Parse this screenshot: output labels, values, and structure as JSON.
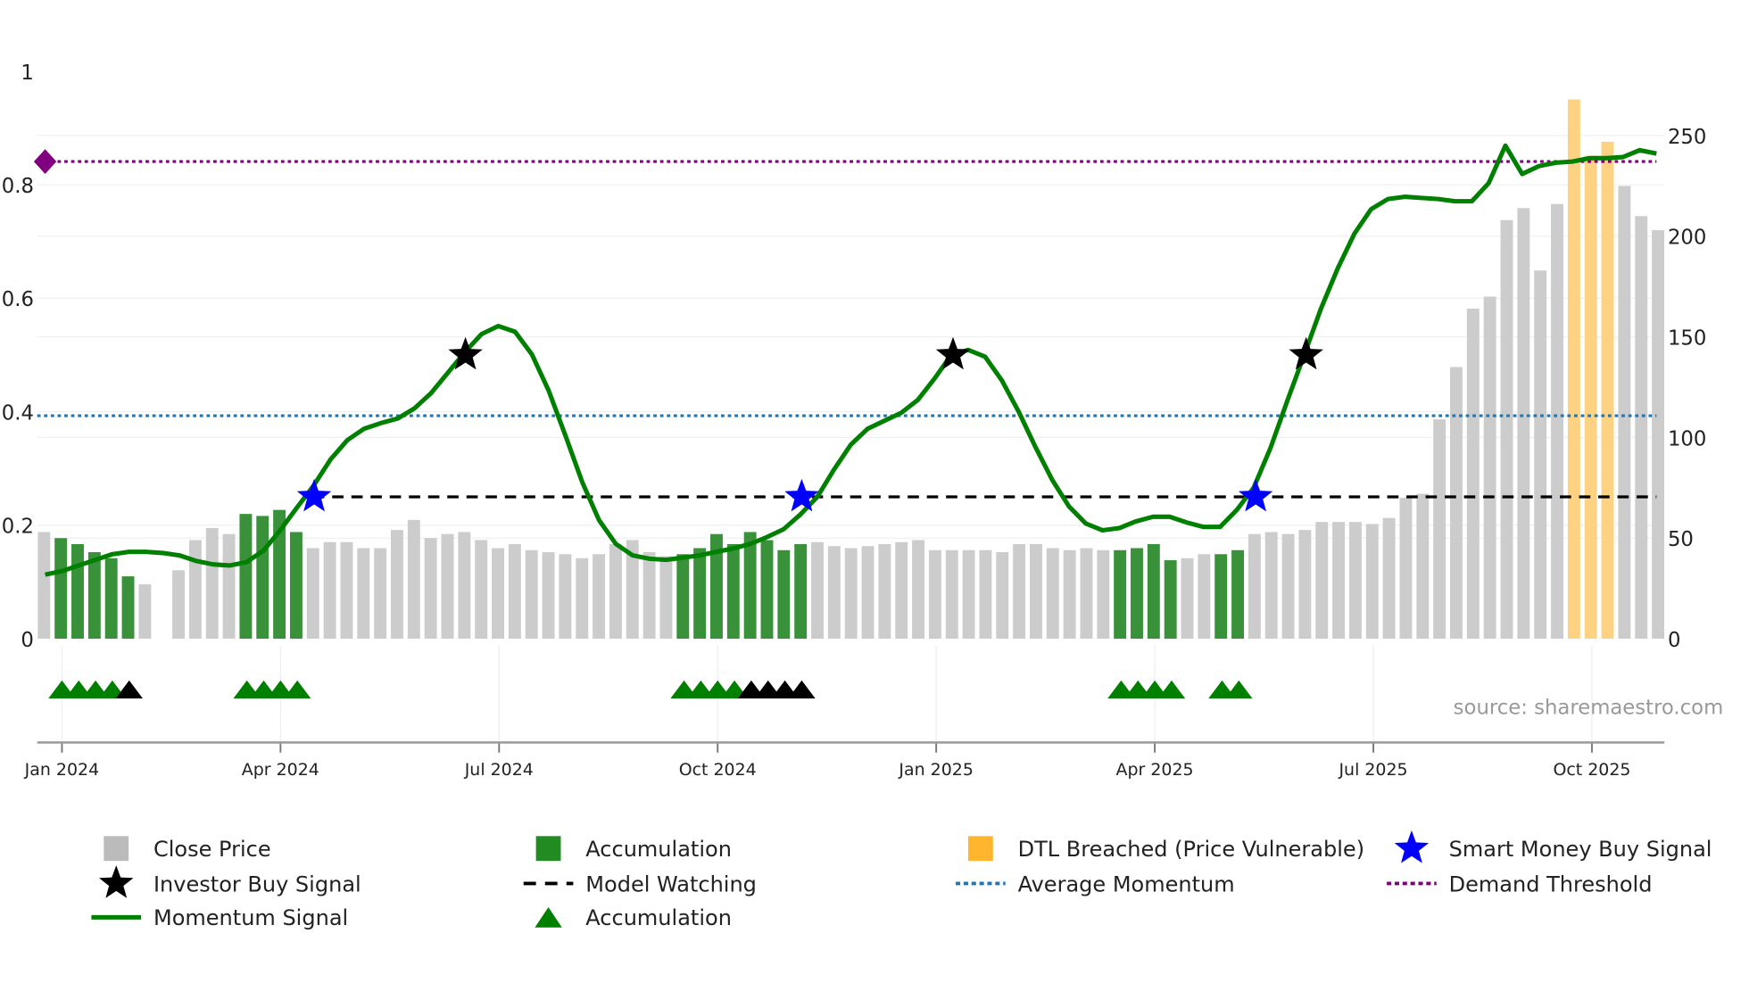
{
  "chart_data": {
    "type": "bar",
    "title": "",
    "left_axis": {
      "ticks": [
        0,
        0.2,
        0.4,
        0.6,
        0.8,
        1
      ],
      "tick_labels": [
        "0",
        "0.2",
        "0.4",
        "0.6",
        "0.8",
        "1"
      ],
      "ylim": [
        0,
        1
      ]
    },
    "right_axis": {
      "ticks": [
        0,
        50,
        100,
        150,
        200,
        250
      ],
      "tick_labels": [
        "0",
        "50",
        "100",
        "150",
        "200",
        "250"
      ],
      "ylim": [
        0,
        282
      ]
    },
    "x_axis": {
      "tick_labels": [
        "Jan 2024",
        "Apr 2024",
        "Jul 2024",
        "Oct 2024",
        "Jan 2025",
        "Apr 2025",
        "Jul 2025",
        "Oct 2025"
      ],
      "tick_week_index": [
        1,
        14,
        27,
        40,
        53,
        66,
        79,
        92
      ]
    },
    "grid": true,
    "close_price": [
      53,
      50,
      47,
      43,
      40,
      31,
      27,
      0,
      34,
      49,
      55,
      52,
      62,
      61,
      64,
      53,
      45,
      48,
      48,
      45,
      45,
      54,
      59,
      50,
      52,
      53,
      49,
      45,
      47,
      44,
      43,
      42,
      40,
      42,
      47,
      49,
      43,
      41,
      42,
      45,
      52,
      47,
      53,
      49,
      44,
      47,
      48,
      46,
      45,
      46,
      47,
      48,
      49,
      44,
      44,
      44,
      44,
      43,
      47,
      47,
      45,
      44,
      45,
      44,
      44,
      45,
      47,
      39,
      40,
      42,
      42,
      44,
      52,
      53,
      52,
      54,
      58,
      58,
      58,
      57,
      60,
      70,
      72,
      109,
      135,
      164,
      170,
      208,
      214,
      183,
      216,
      268,
      240,
      247,
      225,
      210,
      203
    ],
    "bar_state": [
      "c",
      "a",
      "a",
      "a",
      "a",
      "a",
      "c",
      "c",
      "c",
      "c",
      "c",
      "c",
      "a",
      "a",
      "a",
      "a",
      "c",
      "c",
      "c",
      "c",
      "c",
      "c",
      "c",
      "c",
      "c",
      "c",
      "c",
      "c",
      "c",
      "c",
      "c",
      "c",
      "c",
      "c",
      "c",
      "c",
      "c",
      "c",
      "a",
      "a",
      "a",
      "a",
      "a",
      "a",
      "a",
      "a",
      "c",
      "c",
      "c",
      "c",
      "c",
      "c",
      "c",
      "c",
      "c",
      "c",
      "c",
      "c",
      "c",
      "c",
      "c",
      "c",
      "c",
      "c",
      "a",
      "a",
      "a",
      "a",
      "c",
      "c",
      "a",
      "a",
      "c",
      "c",
      "c",
      "c",
      "c",
      "c",
      "c",
      "c",
      "c",
      "c",
      "c",
      "c",
      "c",
      "c",
      "c",
      "c",
      "c",
      "c",
      "c",
      "d",
      "d",
      "d",
      "c",
      "c",
      "c"
    ],
    "momentum": [
      0.113,
      0.119,
      0.129,
      0.139,
      0.149,
      0.153,
      0.153,
      0.151,
      0.147,
      0.137,
      0.131,
      0.129,
      0.135,
      0.155,
      0.191,
      0.231,
      0.27,
      0.316,
      0.35,
      0.37,
      0.38,
      0.388,
      0.406,
      0.433,
      0.469,
      0.505,
      0.537,
      0.551,
      0.541,
      0.501,
      0.437,
      0.358,
      0.276,
      0.209,
      0.167,
      0.147,
      0.141,
      0.139,
      0.143,
      0.147,
      0.153,
      0.159,
      0.167,
      0.179,
      0.193,
      0.219,
      0.25,
      0.298,
      0.342,
      0.37,
      0.384,
      0.398,
      0.421,
      0.459,
      0.501,
      0.509,
      0.497,
      0.455,
      0.4,
      0.338,
      0.28,
      0.233,
      0.203,
      0.191,
      0.195,
      0.207,
      0.215,
      0.215,
      0.205,
      0.197,
      0.197,
      0.227,
      0.266,
      0.336,
      0.419,
      0.499,
      0.581,
      0.652,
      0.714,
      0.757,
      0.775,
      0.779,
      0.777,
      0.775,
      0.771,
      0.771,
      0.803,
      0.869,
      0.819,
      0.833,
      0.839,
      0.841,
      0.847,
      0.847,
      0.849,
      0.861,
      0.855
    ],
    "investor_buy_signals": [
      {
        "week": 25,
        "value": 0.5
      },
      {
        "week": 54,
        "value": 0.5
      },
      {
        "week": 75,
        "value": 0.5
      }
    ],
    "smart_money_buy_signals": [
      {
        "week": 16,
        "value": 0.25
      },
      {
        "week": 45,
        "value": 0.25
      },
      {
        "week": 72,
        "value": 0.25
      }
    ],
    "model_watching": {
      "value": 0.25,
      "from_week": 16
    },
    "average_momentum": 0.393,
    "demand_threshold": 0.841,
    "accumulation_markers": [
      {
        "week": 1,
        "color": "green"
      },
      {
        "week": 2,
        "color": "green"
      },
      {
        "week": 3,
        "color": "green"
      },
      {
        "week": 4,
        "color": "green"
      },
      {
        "week": 5,
        "color": "black"
      },
      {
        "week": 12,
        "color": "green"
      },
      {
        "week": 13,
        "color": "green"
      },
      {
        "week": 14,
        "color": "green"
      },
      {
        "week": 15,
        "color": "green"
      },
      {
        "week": 38,
        "color": "green"
      },
      {
        "week": 39,
        "color": "green"
      },
      {
        "week": 40,
        "color": "green"
      },
      {
        "week": 41,
        "color": "green"
      },
      {
        "week": 42,
        "color": "black"
      },
      {
        "week": 43,
        "color": "black"
      },
      {
        "week": 44,
        "color": "black"
      },
      {
        "week": 45,
        "color": "black"
      },
      {
        "week": 64,
        "color": "green"
      },
      {
        "week": 65,
        "color": "green"
      },
      {
        "week": 66,
        "color": "green"
      },
      {
        "week": 67,
        "color": "green"
      },
      {
        "week": 70,
        "color": "green"
      },
      {
        "week": 71,
        "color": "green"
      }
    ],
    "legend": [
      {
        "label": "Close Price",
        "marker": "square",
        "color": "#bbbbbb"
      },
      {
        "label": "Accumulation",
        "marker": "square",
        "color": "#228b22"
      },
      {
        "label": "DTL Breached (Price Vulnerable)",
        "marker": "square",
        "color": "#ffb52e"
      },
      {
        "label": "Smart Money Buy Signal",
        "marker": "star",
        "color": "#0000ff"
      },
      {
        "label": "Investor Buy Signal",
        "marker": "star",
        "color": "#000000"
      },
      {
        "label": "Model Watching",
        "marker": "dash",
        "color": "#000000"
      },
      {
        "label": "Average Momentum",
        "marker": "dot",
        "color": "#1f77b4"
      },
      {
        "label": "Demand Threshold",
        "marker": "dot",
        "color": "#800080"
      },
      {
        "label": "Momentum Signal",
        "marker": "line",
        "color": "#008000"
      },
      {
        "label": "Accumulation",
        "marker": "triangle",
        "color": "#008000"
      }
    ],
    "legend_placement": "bottom",
    "source": "source: sharemaestro.com"
  }
}
